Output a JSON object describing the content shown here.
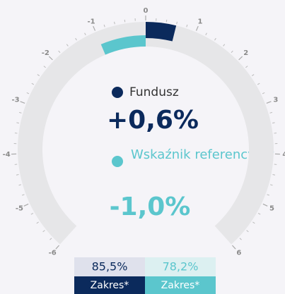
{
  "chart_data": {
    "type": "gauge",
    "ylim": [
      -6,
      6
    ],
    "yticks": [
      -6,
      -5,
      -4,
      -3,
      -2,
      -1,
      0,
      1,
      2,
      3,
      4,
      5,
      6
    ],
    "series": [
      {
        "name": "Fundusz",
        "color": "#0b2a5c",
        "values": [
          0.6
        ],
        "value_labels": [
          "+0,6%"
        ],
        "range": {
          "value": 85.5,
          "label": "85,5%"
        },
        "range_title": "Zakres*"
      },
      {
        "name": "Wskaźnik referencyjny",
        "color": "#5bc6cd",
        "values": [
          -1.0
        ],
        "value_labels": [
          "-1,0%"
        ],
        "range": {
          "value": 78.2,
          "label": "78,2%"
        },
        "range_title": "Zakres*"
      }
    ]
  }
}
